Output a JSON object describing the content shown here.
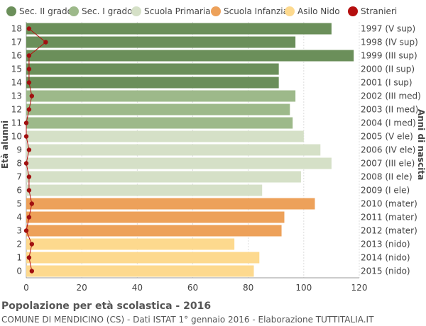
{
  "chart_data": {
    "type": "bar",
    "orientation": "horizontal",
    "title": "Popolazione per età scolastica - 2016",
    "subtitle": "COMUNE DI MENDICINO (CS) - Dati ISTAT 1° gennaio 2016 - Elaborazione TUTTITALIA.IT",
    "ylabel_left": "Età alunni",
    "ylabel_right": "Anni di nascita",
    "xlim": [
      0,
      120
    ],
    "xticks": [
      0,
      20,
      40,
      60,
      80,
      100,
      120
    ],
    "grid": true,
    "legend_position": "top",
    "legend": [
      {
        "name": "Sec. II grado",
        "color": "#6b8f5a",
        "marker": "circle"
      },
      {
        "name": "Sec. I grado",
        "color": "#9db98a",
        "marker": "circle"
      },
      {
        "name": "Scuola Primaria",
        "color": "#d5e0c7",
        "marker": "circle"
      },
      {
        "name": "Scuola Infanzia",
        "color": "#eda15a",
        "marker": "circle"
      },
      {
        "name": "Asilo Nido",
        "color": "#fdd98e",
        "marker": "circle"
      },
      {
        "name": "Stranieri",
        "color": "#b50f0f",
        "marker": "circle"
      }
    ],
    "rows": [
      {
        "age": "18",
        "year": "1997 (V sup)",
        "value": 110,
        "stranieri": 1,
        "group": 0
      },
      {
        "age": "17",
        "year": "1998 (IV sup)",
        "value": 97,
        "stranieri": 7,
        "group": 0
      },
      {
        "age": "16",
        "year": "1999 (III sup)",
        "value": 118,
        "stranieri": 1,
        "group": 0
      },
      {
        "age": "15",
        "year": "2000 (II sup)",
        "value": 91,
        "stranieri": 1,
        "group": 0
      },
      {
        "age": "14",
        "year": "2001 (I sup)",
        "value": 91,
        "stranieri": 1,
        "group": 0
      },
      {
        "age": "13",
        "year": "2002 (III med)",
        "value": 97,
        "stranieri": 2,
        "group": 1
      },
      {
        "age": "12",
        "year": "2003 (II med)",
        "value": 95,
        "stranieri": 1,
        "group": 1
      },
      {
        "age": "11",
        "year": "2004 (I med)",
        "value": 96,
        "stranieri": 0,
        "group": 1
      },
      {
        "age": "10",
        "year": "2005 (V ele)",
        "value": 100,
        "stranieri": 0,
        "group": 2
      },
      {
        "age": "9",
        "year": "2006 (IV ele)",
        "value": 106,
        "stranieri": 1,
        "group": 2
      },
      {
        "age": "8",
        "year": "2007 (III ele)",
        "value": 110,
        "stranieri": 0,
        "group": 2
      },
      {
        "age": "7",
        "year": "2008 (II ele)",
        "value": 99,
        "stranieri": 1,
        "group": 2
      },
      {
        "age": "6",
        "year": "2009 (I ele)",
        "value": 85,
        "stranieri": 1,
        "group": 2
      },
      {
        "age": "5",
        "year": "2010 (mater)",
        "value": 104,
        "stranieri": 2,
        "group": 3
      },
      {
        "age": "4",
        "year": "2011 (mater)",
        "value": 93,
        "stranieri": 1,
        "group": 3
      },
      {
        "age": "3",
        "year": "2012 (mater)",
        "value": 92,
        "stranieri": 0,
        "group": 3
      },
      {
        "age": "2",
        "year": "2013 (nido)",
        "value": 75,
        "stranieri": 2,
        "group": 4
      },
      {
        "age": "1",
        "year": "2014 (nido)",
        "value": 84,
        "stranieri": 1,
        "group": 4
      },
      {
        "age": "0",
        "year": "2015 (nido)",
        "value": 82,
        "stranieri": 2,
        "group": 4
      }
    ]
  }
}
